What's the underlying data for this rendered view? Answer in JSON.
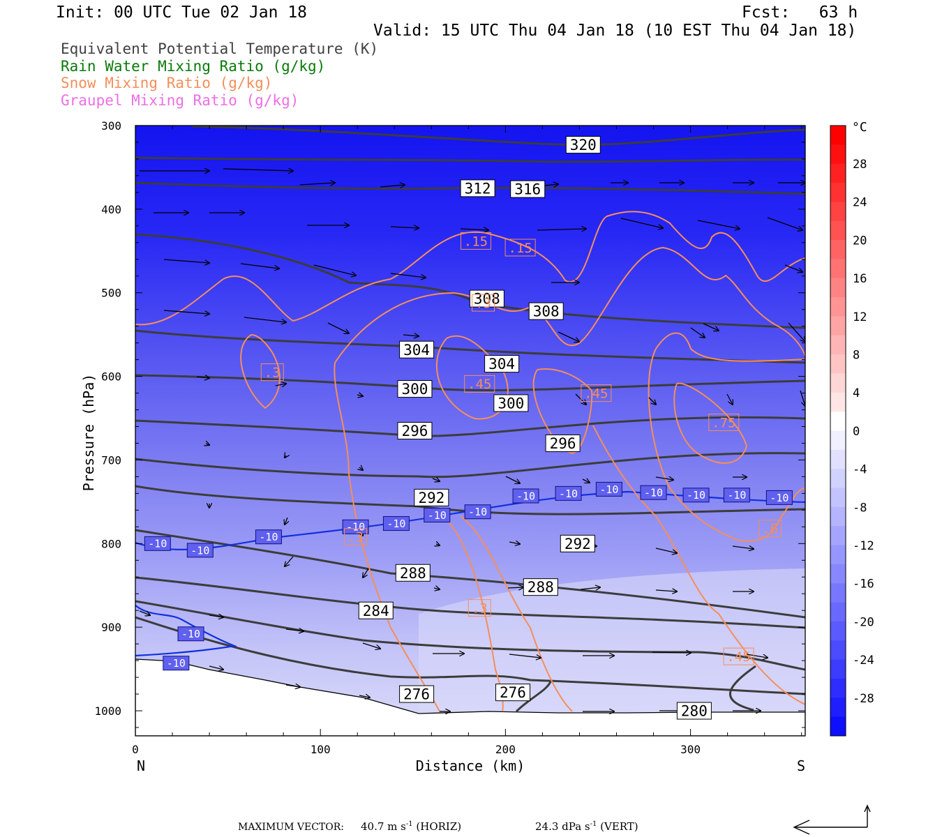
{
  "header": {
    "init": "Init: 00 UTC Tue 02 Jan 18",
    "fcst": "Fcst:   63 h",
    "valid": "Valid: 15 UTC Thu 04 Jan 18 (10 EST Thu 04 Jan 18)"
  },
  "legend": [
    {
      "label": "Equivalent Potential Temperature (K)",
      "color": "#404040"
    },
    {
      "label": "Rain Water Mixing Ratio (g/kg)",
      "color": "#0a7a0a"
    },
    {
      "label": "Snow Mixing Ratio (g/kg)",
      "color": "#f58e5a"
    },
    {
      "label": "Graupel Mixing Ratio (g/kg)",
      "color": "#ee6ee6"
    }
  ],
  "chart_data": {
    "type": "cross-section",
    "xlabel": "Distance (km)",
    "ylabel": "Pressure (hPa)",
    "x_ticks": [
      "0",
      "100",
      "200",
      "300"
    ],
    "x_range": [
      0,
      362
    ],
    "y_ticks": [
      "300",
      "400",
      "500",
      "600",
      "700",
      "800",
      "900",
      "1000"
    ],
    "y_range": [
      300,
      1030
    ],
    "x_end_labels": {
      "left": "N",
      "right": "S"
    },
    "colorbar": {
      "unit": "°C",
      "ticks": [
        "28",
        "24",
        "20",
        "16",
        "12",
        "8",
        "4",
        "0",
        "-4",
        "-8",
        "-12",
        "-16",
        "-20",
        "-24",
        "-28"
      ]
    },
    "theta_e_labels": [
      {
        "text": "320",
        "x": 242,
        "p": 323
      },
      {
        "text": "312",
        "x": 185,
        "p": 375
      },
      {
        "text": "316",
        "x": 212,
        "p": 376
      },
      {
        "text": "308",
        "x": 190,
        "p": 507
      },
      {
        "text": "308",
        "x": 222,
        "p": 522
      },
      {
        "text": "304",
        "x": 152,
        "p": 568
      },
      {
        "text": "304",
        "x": 198,
        "p": 585
      },
      {
        "text": "300",
        "x": 151,
        "p": 615
      },
      {
        "text": "300",
        "x": 203,
        "p": 632
      },
      {
        "text": "296",
        "x": 151,
        "p": 665
      },
      {
        "text": "296",
        "x": 231,
        "p": 680
      },
      {
        "text": "292",
        "x": 160,
        "p": 745
      },
      {
        "text": "292",
        "x": 239,
        "p": 800
      },
      {
        "text": "288",
        "x": 150,
        "p": 835
      },
      {
        "text": "288",
        "x": 219,
        "p": 852
      },
      {
        "text": "284",
        "x": 130,
        "p": 880
      },
      {
        "text": "276",
        "x": 152,
        "p": 980
      },
      {
        "text": "276",
        "x": 204,
        "p": 978
      },
      {
        "text": "280",
        "x": 302,
        "p": 1000
      }
    ],
    "isotherm_labels": [
      {
        "text": "-10",
        "x": 12,
        "p": 800
      },
      {
        "text": "-10",
        "x": 35,
        "p": 808
      },
      {
        "text": "-10",
        "x": 72,
        "p": 792
      },
      {
        "text": "-10",
        "x": 119,
        "p": 780
      },
      {
        "text": "-10",
        "x": 141,
        "p": 776
      },
      {
        "text": "-10",
        "x": 163,
        "p": 766
      },
      {
        "text": "-10",
        "x": 185,
        "p": 762
      },
      {
        "text": "-10",
        "x": 211,
        "p": 743
      },
      {
        "text": "-10",
        "x": 234,
        "p": 740
      },
      {
        "text": "-10",
        "x": 256,
        "p": 735
      },
      {
        "text": "-10",
        "x": 280,
        "p": 739
      },
      {
        "text": "-10",
        "x": 303,
        "p": 742
      },
      {
        "text": "-10",
        "x": 325,
        "p": 742
      },
      {
        "text": "-10",
        "x": 348,
        "p": 745
      },
      {
        "text": "-10",
        "x": 30,
        "p": 908
      },
      {
        "text": "-10",
        "x": 22,
        "p": 943
      }
    ],
    "snow_labels": [
      {
        "text": ".15",
        "x": 184,
        "p": 438
      },
      {
        "text": ".15",
        "x": 208,
        "p": 446
      },
      {
        "text": ".3",
        "x": 188,
        "p": 512
      },
      {
        "text": ".3",
        "x": 74,
        "p": 595
      },
      {
        "text": ".45",
        "x": 186,
        "p": 609
      },
      {
        "text": ".45",
        "x": 249,
        "p": 620
      },
      {
        "text": ".75",
        "x": 318,
        "p": 655
      },
      {
        "text": ".6",
        "x": 343,
        "p": 782
      },
      {
        "text": ".3",
        "x": 119,
        "p": 792
      },
      {
        "text": ".3",
        "x": 186,
        "p": 877
      },
      {
        "text": ".45",
        "x": 326,
        "p": 935
      }
    ]
  },
  "footer": {
    "max_vector_label": "MAXIMUM VECTOR:",
    "horiz_value": "40.7 m s",
    "horiz_unit": "(HORIZ)",
    "vert_value": "24.3 dPa s",
    "vert_unit": "(VERT)",
    "exponent": "-1"
  }
}
